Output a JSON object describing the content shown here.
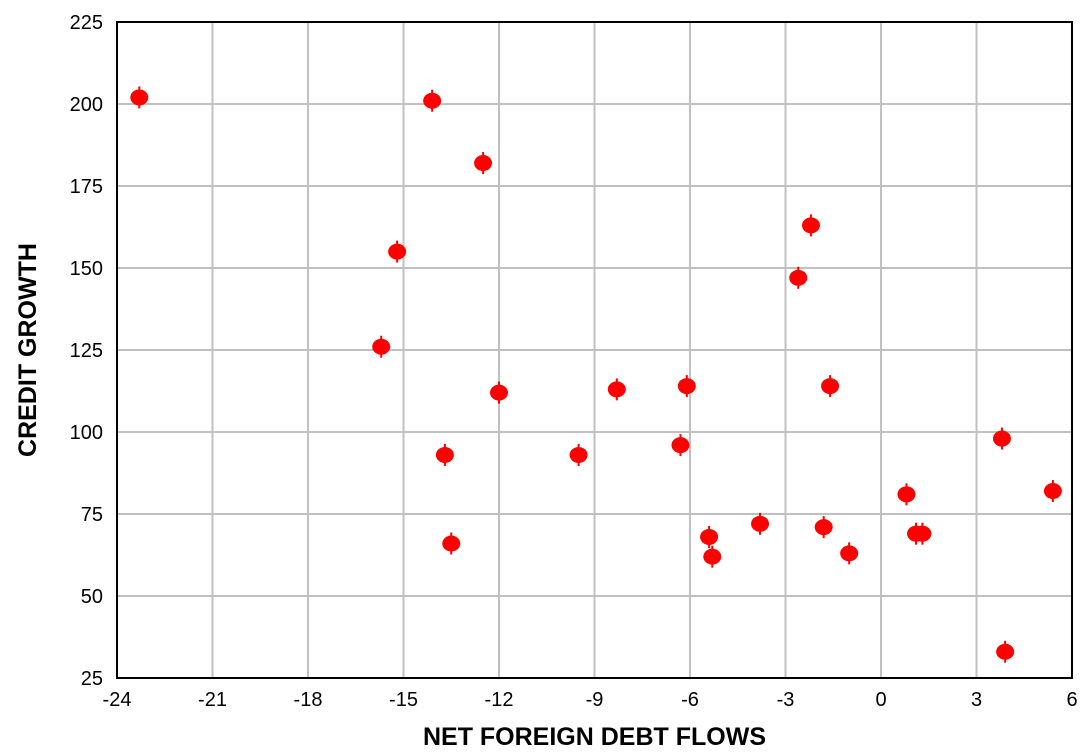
{
  "chart_data": {
    "type": "scatter",
    "title": "",
    "xlabel": "NET FOREIGN DEBT FLOWS",
    "ylabel": "CREDIT GROWTH",
    "xlim": [
      -24,
      6
    ],
    "ylim": [
      25,
      225
    ],
    "xticks": [
      -24,
      -21,
      -18,
      -15,
      -12,
      -9,
      -6,
      -3,
      0,
      3,
      6
    ],
    "yticks": [
      25,
      50,
      75,
      100,
      125,
      150,
      175,
      200,
      225
    ],
    "grid": true,
    "marker_color": "#ff0000",
    "grid_color": "#c0c0c0",
    "series": [
      {
        "x": [
          -23.3,
          -14.1,
          -12.5,
          -15.2,
          -15.7,
          -12.0,
          -13.7,
          -13.5,
          -9.5,
          -8.3,
          -6.1,
          -6.3,
          -5.4,
          -5.3,
          -3.8,
          -2.6,
          -2.2,
          -1.6,
          -1.8,
          -1.0,
          0.8,
          1.1,
          1.3,
          3.8,
          3.9,
          5.4
        ],
        "y": [
          202,
          201,
          182,
          155,
          126,
          112,
          93,
          66,
          93,
          113,
          114,
          96,
          68,
          62,
          72,
          147,
          163,
          114,
          71,
          63,
          81,
          69,
          69,
          98,
          33,
          82
        ]
      }
    ]
  }
}
